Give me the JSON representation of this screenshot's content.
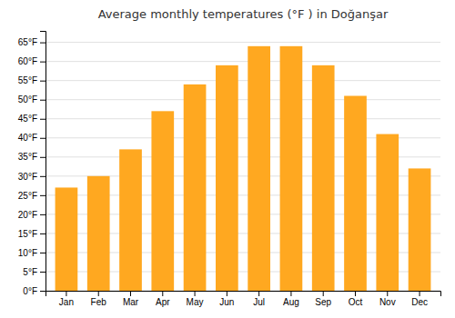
{
  "chart_data": {
    "type": "bar",
    "title": "Average monthly temperatures (°F ) in Doğanşar",
    "categories": [
      "Jan",
      "Feb",
      "Mar",
      "Apr",
      "May",
      "Jun",
      "Jul",
      "Aug",
      "Sep",
      "Oct",
      "Nov",
      "Dec"
    ],
    "values": [
      27,
      30,
      37,
      47,
      54,
      59,
      64,
      64,
      59,
      51,
      41,
      32
    ],
    "color": "#FFA820",
    "ylim": [
      0,
      68
    ],
    "yticks": [
      {
        "value": 0,
        "label": "0°F"
      },
      {
        "value": 5,
        "label": "5°F"
      },
      {
        "value": 10,
        "label": "10°F"
      },
      {
        "value": 15,
        "label": "15°F"
      },
      {
        "value": 20,
        "label": "20°F"
      },
      {
        "value": 25,
        "label": "25°F"
      },
      {
        "value": 30,
        "label": "30°F"
      },
      {
        "value": 35,
        "label": "35°F"
      },
      {
        "value": 40,
        "label": "40°F"
      },
      {
        "value": 45,
        "label": "45°F"
      },
      {
        "value": 50,
        "label": "50°F"
      },
      {
        "value": 55,
        "label": "55°F"
      },
      {
        "value": 60,
        "label": "60°F"
      },
      {
        "value": 65,
        "label": "65°F"
      }
    ],
    "grid": true
  }
}
